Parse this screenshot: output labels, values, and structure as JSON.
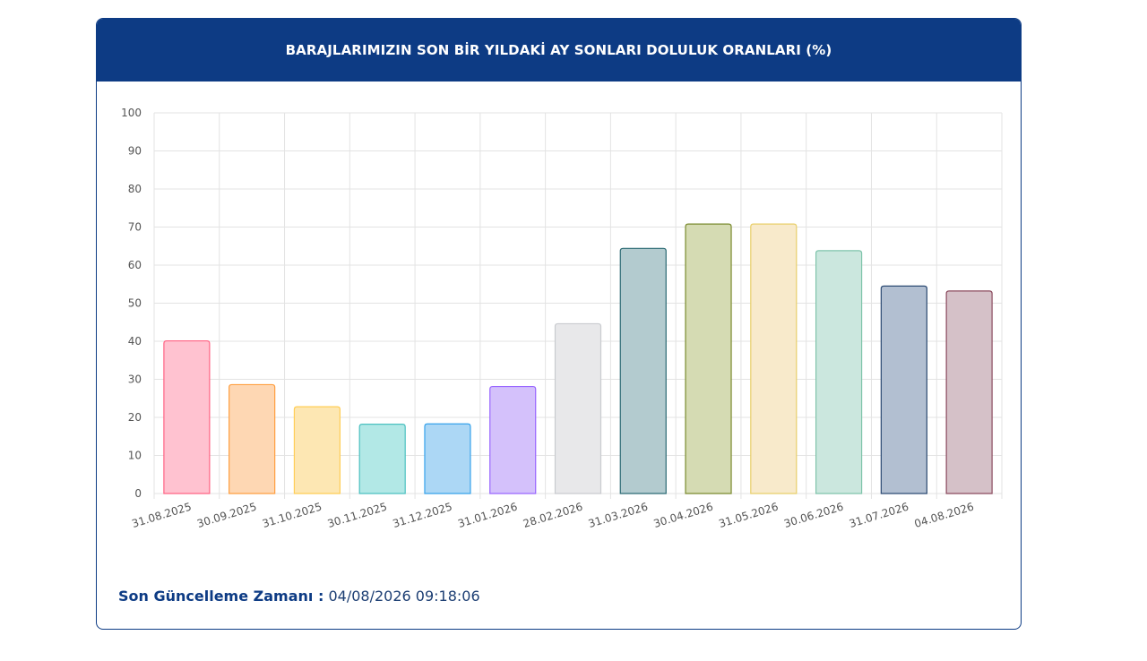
{
  "header": {
    "title": "BARAJLARIMIZIN SON BİR YILDAKİ AY SONLARI DOLULUK ORANLARI (%)"
  },
  "footer": {
    "label": "Son Güncelleme Zamanı :",
    "value": "04/08/2026 09:18:06"
  },
  "chart_data": {
    "type": "bar",
    "title": "BARAJLARIMIZIN SON BİR YILDAKİ AY SONLARI DOLULUK ORANLARI (%)",
    "xlabel": "",
    "ylabel": "",
    "ylim": [
      0,
      100
    ],
    "yticks": [
      0,
      10,
      20,
      30,
      40,
      50,
      60,
      70,
      80,
      90,
      100
    ],
    "grid": true,
    "legend": "none",
    "categories": [
      "31.08.2025",
      "30.09.2025",
      "31.10.2025",
      "30.11.2025",
      "31.12.2025",
      "31.01.2026",
      "28.02.2026",
      "31.03.2026",
      "30.04.2026",
      "31.05.2026",
      "30.06.2026",
      "31.07.2026",
      "04.08.2026"
    ],
    "values": [
      40.1,
      28.6,
      22.8,
      18.2,
      18.3,
      28.1,
      44.6,
      64.4,
      70.8,
      70.8,
      63.8,
      54.5,
      53.2
    ],
    "fill_colors": [
      "#ffc2d0",
      "#fed7b3",
      "#fde7b3",
      "#b2e8e6",
      "#acd7f5",
      "#d4c1fb",
      "#e8e8ea",
      "#b3cbcf",
      "#d5dbb3",
      "#f8eacb",
      "#cbe7de",
      "#b2bfd1",
      "#d5c1c8"
    ],
    "border_colors": [
      "#ff6384",
      "#ff9f40",
      "#ffcd56",
      "#4bc0c0",
      "#36a2eb",
      "#9966ff",
      "#c9cbcf",
      "#2b6a73",
      "#7a8a2e",
      "#e8cf6a",
      "#7fc4ab",
      "#2c4a73",
      "#8b4a5e"
    ]
  }
}
